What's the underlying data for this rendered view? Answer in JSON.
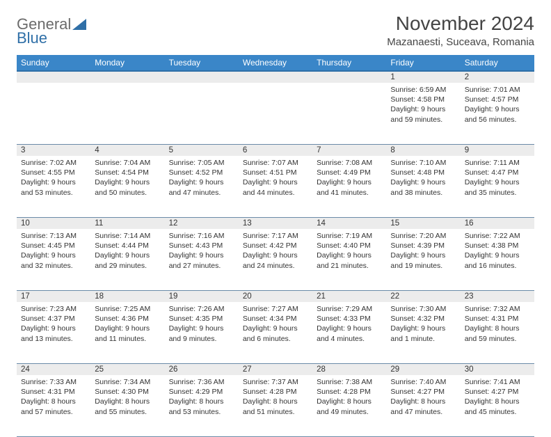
{
  "logo": {
    "general": "General",
    "blue": "Blue"
  },
  "title": "November 2024",
  "location": "Mazanaesti, Suceava, Romania",
  "colors": {
    "header_bg": "#3a86c8",
    "header_border": "#2f6fa7",
    "daynum_bg": "#ececec",
    "grid_line": "#6a8aa8",
    "text": "#333333",
    "logo_gray": "#6b6b6b",
    "logo_blue": "#2f6fa7",
    "page_bg": "#ffffff"
  },
  "fonts": {
    "title_size_pt": 21,
    "location_size_pt": 11,
    "dayheader_size_pt": 9,
    "daynum_size_pt": 9,
    "body_size_pt": 8
  },
  "day_headers": [
    "Sunday",
    "Monday",
    "Tuesday",
    "Wednesday",
    "Thursday",
    "Friday",
    "Saturday"
  ],
  "weeks": [
    [
      null,
      null,
      null,
      null,
      null,
      {
        "n": "1",
        "sr": "Sunrise: 6:59 AM",
        "ss": "Sunset: 4:58 PM",
        "dl": "Daylight: 9 hours and 59 minutes."
      },
      {
        "n": "2",
        "sr": "Sunrise: 7:01 AM",
        "ss": "Sunset: 4:57 PM",
        "dl": "Daylight: 9 hours and 56 minutes."
      }
    ],
    [
      {
        "n": "3",
        "sr": "Sunrise: 7:02 AM",
        "ss": "Sunset: 4:55 PM",
        "dl": "Daylight: 9 hours and 53 minutes."
      },
      {
        "n": "4",
        "sr": "Sunrise: 7:04 AM",
        "ss": "Sunset: 4:54 PM",
        "dl": "Daylight: 9 hours and 50 minutes."
      },
      {
        "n": "5",
        "sr": "Sunrise: 7:05 AM",
        "ss": "Sunset: 4:52 PM",
        "dl": "Daylight: 9 hours and 47 minutes."
      },
      {
        "n": "6",
        "sr": "Sunrise: 7:07 AM",
        "ss": "Sunset: 4:51 PM",
        "dl": "Daylight: 9 hours and 44 minutes."
      },
      {
        "n": "7",
        "sr": "Sunrise: 7:08 AM",
        "ss": "Sunset: 4:49 PM",
        "dl": "Daylight: 9 hours and 41 minutes."
      },
      {
        "n": "8",
        "sr": "Sunrise: 7:10 AM",
        "ss": "Sunset: 4:48 PM",
        "dl": "Daylight: 9 hours and 38 minutes."
      },
      {
        "n": "9",
        "sr": "Sunrise: 7:11 AM",
        "ss": "Sunset: 4:47 PM",
        "dl": "Daylight: 9 hours and 35 minutes."
      }
    ],
    [
      {
        "n": "10",
        "sr": "Sunrise: 7:13 AM",
        "ss": "Sunset: 4:45 PM",
        "dl": "Daylight: 9 hours and 32 minutes."
      },
      {
        "n": "11",
        "sr": "Sunrise: 7:14 AM",
        "ss": "Sunset: 4:44 PM",
        "dl": "Daylight: 9 hours and 29 minutes."
      },
      {
        "n": "12",
        "sr": "Sunrise: 7:16 AM",
        "ss": "Sunset: 4:43 PM",
        "dl": "Daylight: 9 hours and 27 minutes."
      },
      {
        "n": "13",
        "sr": "Sunrise: 7:17 AM",
        "ss": "Sunset: 4:42 PM",
        "dl": "Daylight: 9 hours and 24 minutes."
      },
      {
        "n": "14",
        "sr": "Sunrise: 7:19 AM",
        "ss": "Sunset: 4:40 PM",
        "dl": "Daylight: 9 hours and 21 minutes."
      },
      {
        "n": "15",
        "sr": "Sunrise: 7:20 AM",
        "ss": "Sunset: 4:39 PM",
        "dl": "Daylight: 9 hours and 19 minutes."
      },
      {
        "n": "16",
        "sr": "Sunrise: 7:22 AM",
        "ss": "Sunset: 4:38 PM",
        "dl": "Daylight: 9 hours and 16 minutes."
      }
    ],
    [
      {
        "n": "17",
        "sr": "Sunrise: 7:23 AM",
        "ss": "Sunset: 4:37 PM",
        "dl": "Daylight: 9 hours and 13 minutes."
      },
      {
        "n": "18",
        "sr": "Sunrise: 7:25 AM",
        "ss": "Sunset: 4:36 PM",
        "dl": "Daylight: 9 hours and 11 minutes."
      },
      {
        "n": "19",
        "sr": "Sunrise: 7:26 AM",
        "ss": "Sunset: 4:35 PM",
        "dl": "Daylight: 9 hours and 9 minutes."
      },
      {
        "n": "20",
        "sr": "Sunrise: 7:27 AM",
        "ss": "Sunset: 4:34 PM",
        "dl": "Daylight: 9 hours and 6 minutes."
      },
      {
        "n": "21",
        "sr": "Sunrise: 7:29 AM",
        "ss": "Sunset: 4:33 PM",
        "dl": "Daylight: 9 hours and 4 minutes."
      },
      {
        "n": "22",
        "sr": "Sunrise: 7:30 AM",
        "ss": "Sunset: 4:32 PM",
        "dl": "Daylight: 9 hours and 1 minute."
      },
      {
        "n": "23",
        "sr": "Sunrise: 7:32 AM",
        "ss": "Sunset: 4:31 PM",
        "dl": "Daylight: 8 hours and 59 minutes."
      }
    ],
    [
      {
        "n": "24",
        "sr": "Sunrise: 7:33 AM",
        "ss": "Sunset: 4:31 PM",
        "dl": "Daylight: 8 hours and 57 minutes."
      },
      {
        "n": "25",
        "sr": "Sunrise: 7:34 AM",
        "ss": "Sunset: 4:30 PM",
        "dl": "Daylight: 8 hours and 55 minutes."
      },
      {
        "n": "26",
        "sr": "Sunrise: 7:36 AM",
        "ss": "Sunset: 4:29 PM",
        "dl": "Daylight: 8 hours and 53 minutes."
      },
      {
        "n": "27",
        "sr": "Sunrise: 7:37 AM",
        "ss": "Sunset: 4:28 PM",
        "dl": "Daylight: 8 hours and 51 minutes."
      },
      {
        "n": "28",
        "sr": "Sunrise: 7:38 AM",
        "ss": "Sunset: 4:28 PM",
        "dl": "Daylight: 8 hours and 49 minutes."
      },
      {
        "n": "29",
        "sr": "Sunrise: 7:40 AM",
        "ss": "Sunset: 4:27 PM",
        "dl": "Daylight: 8 hours and 47 minutes."
      },
      {
        "n": "30",
        "sr": "Sunrise: 7:41 AM",
        "ss": "Sunset: 4:27 PM",
        "dl": "Daylight: 8 hours and 45 minutes."
      }
    ]
  ]
}
